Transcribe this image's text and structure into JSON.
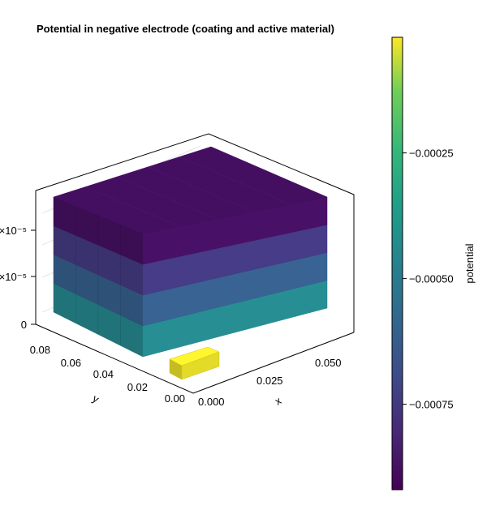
{
  "chart_data": {
    "type": "heatmap",
    "title": "Potential in negative electrode (coating and active material)",
    "xlabel": "x",
    "ylabel": "y",
    "zlabel": "",
    "x_ticks": [
      "0.000",
      "0.025",
      "0.050"
    ],
    "y_ticks": [
      "0.00",
      "0.02",
      "0.04",
      "0.06",
      "0.08"
    ],
    "z_ticks": [
      "0",
      "×10⁻⁵",
      "×10⁻⁵"
    ],
    "colorbar": {
      "label": "potential",
      "colormap": "viridis",
      "range": [
        -0.00092,
        -2e-05
      ],
      "ticks": [
        {
          "value": -0.00025,
          "label": "−0.00025"
        },
        {
          "value": -0.0005,
          "label": "−0.00050"
        },
        {
          "value": -0.00075,
          "label": "−0.00075"
        }
      ]
    },
    "block_layers_potential_bottom_to_top": [
      -0.00045,
      -0.00062,
      -0.00075,
      -0.00088
    ],
    "active_material_tab_potential": -3e-05,
    "grid": true
  }
}
